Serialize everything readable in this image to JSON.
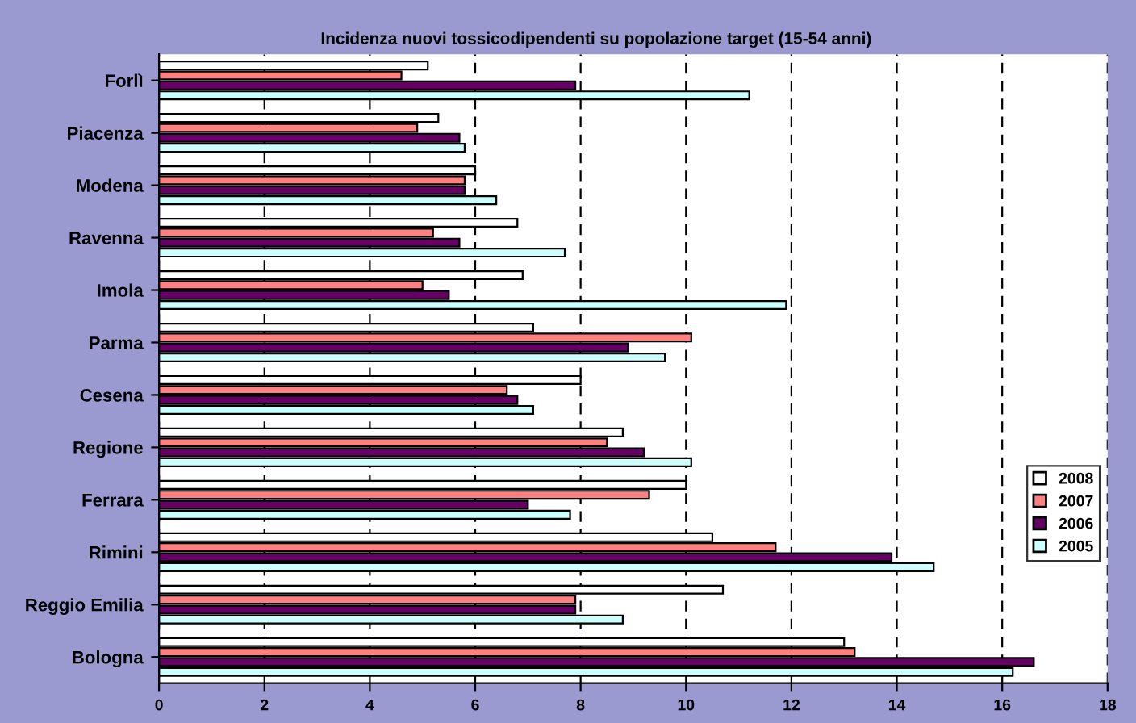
{
  "chart_data": {
    "type": "bar",
    "orientation": "horizontal",
    "title": "Incidenza nuovi tossicodipendenti su popolazione target (15-54 anni)",
    "categories": [
      "Forlì",
      "Piacenza",
      "Modena",
      "Ravenna",
      "Imola",
      "Parma",
      "Cesena",
      "Regione",
      "Ferrara",
      "Rimini",
      "Reggio Emilia",
      "Bologna"
    ],
    "series": [
      {
        "name": "2008",
        "color": "#ffffff",
        "values": [
          5.1,
          5.3,
          6.0,
          6.8,
          6.9,
          7.1,
          8.0,
          8.8,
          10.0,
          10.5,
          10.7,
          13.0
        ]
      },
      {
        "name": "2007",
        "color": "#ff8080",
        "values": [
          4.6,
          4.9,
          5.8,
          5.2,
          5.0,
          10.1,
          6.6,
          8.5,
          9.3,
          11.7,
          7.9,
          13.2
        ]
      },
      {
        "name": "2006",
        "color": "#660066",
        "values": [
          7.9,
          5.7,
          5.8,
          5.7,
          5.5,
          8.9,
          6.8,
          9.2,
          7.0,
          13.9,
          7.9,
          16.6
        ]
      },
      {
        "name": "2005",
        "color": "#ccffff",
        "values": [
          11.2,
          5.8,
          6.4,
          7.7,
          11.9,
          9.6,
          7.1,
          10.1,
          7.8,
          14.7,
          8.8,
          16.2
        ]
      }
    ],
    "xlim": [
      0,
      18
    ],
    "xticks": [
      0,
      2,
      4,
      6,
      8,
      10,
      12,
      14,
      16,
      18
    ],
    "grid": "x",
    "legend": "right"
  }
}
